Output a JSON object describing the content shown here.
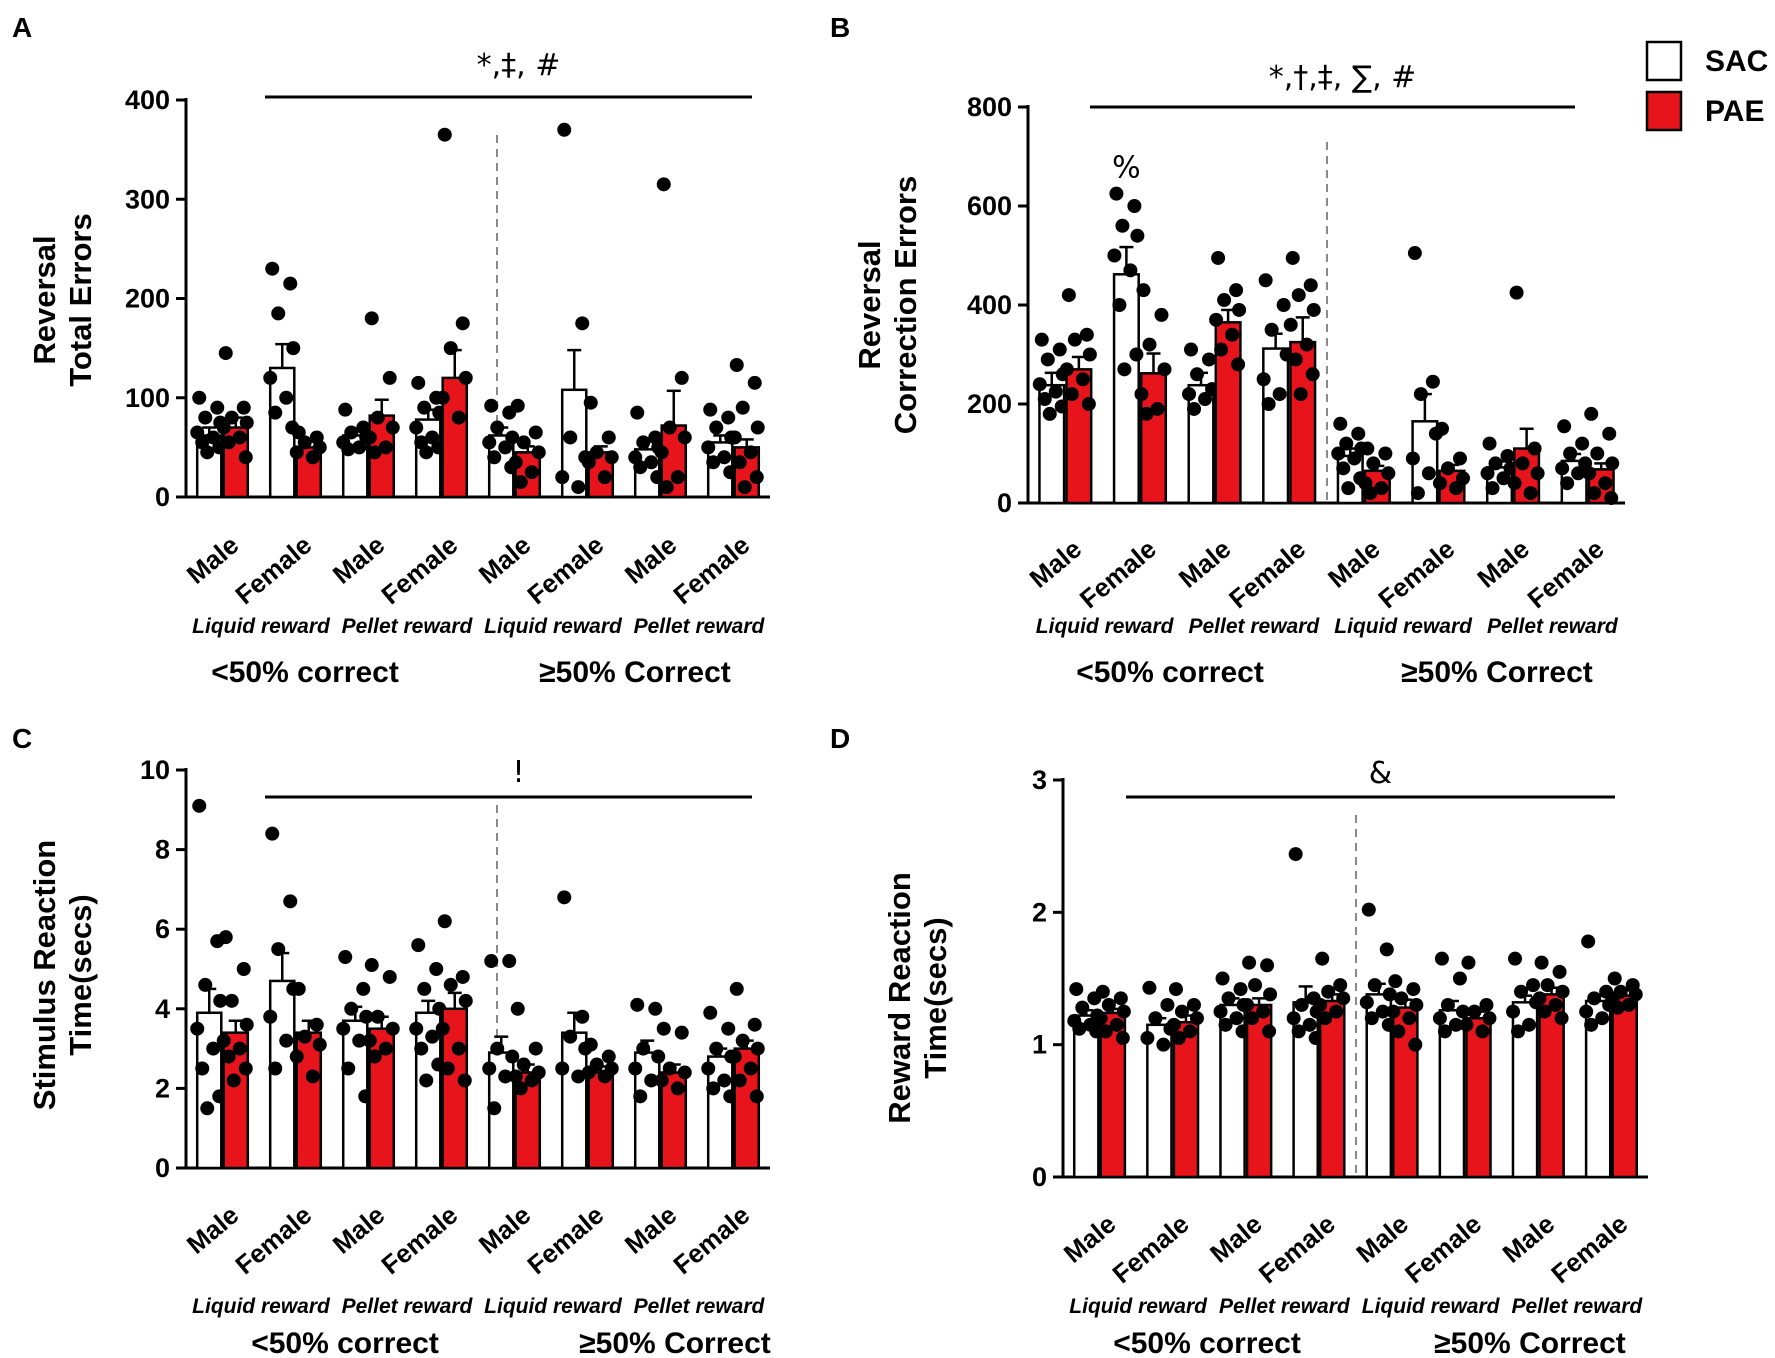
{
  "colors": {
    "sac": "#ffffff",
    "pae": "#e8141b",
    "dot": "#000000",
    "divider": "#8a8a8a"
  },
  "legend": [
    {
      "label": "SAC",
      "color": "#ffffff"
    },
    {
      "label": "PAE",
      "color": "#e8141b"
    }
  ],
  "chart_data": [
    {
      "panel": "A",
      "type": "bar",
      "ylabel_lines": [
        "Reversal",
        "Total Errors"
      ],
      "ylim": [
        0,
        400
      ],
      "yticks": [
        "0",
        "100",
        "200",
        "300",
        "400"
      ],
      "categories": [
        "Male",
        "Female",
        "Male",
        "Female",
        "Male",
        "Female",
        "Male",
        "Female"
      ],
      "reward_groups": [
        "Liquid reward",
        "Pellet reward",
        "Liquid reward",
        "Pellet reward"
      ],
      "thresholds": [
        "<50% correct",
        "≥50% Correct"
      ],
      "significance": "*,‡, #",
      "series": [
        {
          "name": "SAC",
          "values": [
            62,
            130,
            62,
            78,
            62,
            108,
            48,
            55
          ],
          "sem": [
            8,
            24,
            7,
            10,
            8,
            40,
            8,
            7
          ],
          "points": [
            [
              100,
              90,
              80,
              75,
              65,
              60,
              55,
              50,
              45
            ],
            [
              230,
              215,
              185,
              150,
              120,
              100,
              85,
              70
            ],
            [
              88,
              70,
              65,
              60,
              55,
              50,
              48
            ],
            [
              115,
              100,
              90,
              85,
              70,
              60,
              55,
              50,
              45
            ],
            [
              92,
              85,
              70,
              60,
              55,
              50,
              40,
              30
            ],
            [
              370,
              175,
              60,
              40,
              20,
              10
            ],
            [
              85,
              60,
              55,
              50,
              40,
              35,
              30,
              20
            ],
            [
              88,
              80,
              70,
              60,
              50,
              40,
              35,
              25
            ]
          ]
        },
        {
          "name": "PAE",
          "values": [
            70,
            50,
            82,
            120,
            45,
            45,
            72,
            50
          ],
          "sem": [
            10,
            6,
            16,
            28,
            6,
            6,
            35,
            8
          ],
          "points": [
            [
              145,
              90,
              80,
              75,
              70,
              60,
              55,
              40
            ],
            [
              65,
              60,
              55,
              50,
              45,
              40
            ],
            [
              180,
              120,
              80,
              70,
              60,
              50,
              45
            ],
            [
              365,
              175,
              150,
              120,
              100,
              80
            ],
            [
              92,
              65,
              55,
              45,
              35,
              25,
              15
            ],
            [
              95,
              60,
              45,
              40,
              35,
              20
            ],
            [
              315,
              120,
              70,
              60,
              45,
              20,
              10
            ],
            [
              133,
              115,
              90,
              70,
              60,
              45,
              35,
              20,
              10
            ]
          ]
        }
      ]
    },
    {
      "panel": "B",
      "type": "bar",
      "ylabel_lines": [
        "Reversal",
        "Correction Errors"
      ],
      "ylim": [
        0,
        800
      ],
      "yticks": [
        "0",
        "200",
        "400",
        "600",
        "800"
      ],
      "categories": [
        "Male",
        "Female",
        "Male",
        "Female",
        "Male",
        "Female",
        "Male",
        "Female"
      ],
      "reward_groups": [
        "Liquid reward",
        "Pellet reward",
        "Liquid reward",
        "Pellet reward"
      ],
      "thresholds": [
        "<50% correct",
        "≥50% Correct"
      ],
      "significance": "*,†,‡, ∑, #",
      "annotation": {
        "text": "%",
        "category_index": 1
      },
      "series": [
        {
          "name": "SAC",
          "values": [
            238,
            462,
            238,
            312,
            95,
            165,
            72,
            85
          ],
          "sem": [
            25,
            55,
            25,
            30,
            15,
            55,
            12,
            14
          ],
          "points": [
            [
              330,
              310,
              290,
              260,
              240,
              225,
              210,
              195,
              180
            ],
            [
              625,
              600,
              560,
              540,
              500,
              470,
              400,
              300,
              270
            ],
            [
              310,
              290,
              260,
              230,
              220,
              210,
              190
            ],
            [
              450,
              400,
              350,
              300,
              250,
              220,
              200
            ],
            [
              160,
              140,
              120,
              110,
              100,
              90,
              70,
              50,
              30
            ],
            [
              505,
              245,
              220,
              140,
              90,
              60,
              20
            ],
            [
              120,
              95,
              80,
              70,
              60,
              50,
              30
            ],
            [
              155,
              120,
              100,
              80,
              70,
              60,
              40
            ]
          ]
        },
        {
          "name": "PAE",
          "values": [
            270,
            262,
            365,
            325,
            65,
            65,
            110,
            68
          ],
          "sem": [
            25,
            40,
            25,
            50,
            10,
            12,
            40,
            12
          ],
          "points": [
            [
              420,
              340,
              330,
              300,
              270,
              250,
              220,
              200
            ],
            [
              430,
              380,
              320,
              270,
              220,
              190,
              180
            ],
            [
              495,
              430,
              410,
              390,
              370,
              340,
              310,
              280
            ],
            [
              495,
              440,
              420,
              390,
              360,
              320,
              290,
              260,
              220
            ],
            [
              110,
              100,
              80,
              60,
              40,
              30,
              20
            ],
            [
              150,
              90,
              70,
              50,
              40,
              30
            ],
            [
              425,
              110,
              80,
              60,
              40,
              20
            ],
            [
              180,
              140,
              100,
              80,
              60,
              40,
              20,
              10
            ]
          ]
        }
      ]
    },
    {
      "panel": "C",
      "type": "bar",
      "ylabel_lines": [
        "Stimulus Reaction",
        "Time(secs)"
      ],
      "ylim": [
        0,
        10
      ],
      "yticks": [
        "0",
        "2",
        "4",
        "6",
        "8",
        "10"
      ],
      "categories": [
        "Male",
        "Female",
        "Male",
        "Female",
        "Male",
        "Female",
        "Male",
        "Female"
      ],
      "reward_groups": [
        "Liquid reward",
        "Pellet reward",
        "Liquid reward",
        "Pellet reward"
      ],
      "thresholds": [
        "<50% correct",
        "≥50% Correct"
      ],
      "significance": "!",
      "series": [
        {
          "name": "SAC",
          "values": [
            3.9,
            4.7,
            3.7,
            3.9,
            2.9,
            3.4,
            2.9,
            2.8
          ],
          "sem": [
            0.6,
            0.7,
            0.35,
            0.3,
            0.4,
            0.5,
            0.3,
            0.2
          ],
          "points": [
            [
              9.1,
              5.7,
              4.6,
              4.2,
              3.5,
              3.0,
              2.5,
              1.8,
              1.5
            ],
            [
              8.4,
              6.7,
              5.5,
              4.5,
              3.8,
              3.2,
              2.5
            ],
            [
              5.3,
              4.5,
              4.0,
              3.8,
              3.5,
              3.2,
              2.5,
              1.8
            ],
            [
              5.6,
              5.0,
              4.5,
              4.0,
              3.5,
              3.3,
              3.0,
              2.6,
              2.2
            ],
            [
              5.2,
              5.2,
              3.0,
              2.8,
              2.5,
              2.3,
              1.5
            ],
            [
              6.8,
              3.8,
              3.3,
              3.0,
              2.5,
              2.3
            ],
            [
              4.1,
              4.0,
              3.0,
              2.8,
              2.5,
              2.2,
              1.8
            ],
            [
              3.9,
              3.5,
              3.0,
              2.8,
              2.5,
              2.2,
              2.0,
              1.8
            ]
          ]
        },
        {
          "name": "PAE",
          "values": [
            3.4,
            3.4,
            3.5,
            4.0,
            2.4,
            2.4,
            2.4,
            3.0
          ],
          "sem": [
            0.3,
            0.3,
            0.3,
            0.4,
            0.2,
            0.15,
            0.2,
            0.2
          ],
          "points": [
            [
              5.8,
              5.0,
              4.2,
              3.6,
              3.2,
              3.0,
              2.8,
              2.5,
              2.2
            ],
            [
              4.5,
              3.6,
              3.3,
              3.1,
              2.8,
              2.3
            ],
            [
              5.1,
              4.8,
              3.8,
              3.5,
              3.2,
              3.0,
              2.8
            ],
            [
              6.2,
              4.8,
              4.6,
              4.2,
              3.5,
              3.0,
              2.5,
              2.2
            ],
            [
              4.0,
              3.0,
              2.6,
              2.4,
              2.3,
              2.2,
              2.0
            ],
            [
              3.1,
              2.8,
              2.6,
              2.5,
              2.4,
              2.3
            ],
            [
              3.5,
              3.4,
              2.5,
              2.4,
              2.2,
              2.0
            ],
            [
              4.5,
              3.6,
              3.2,
              3.0,
              2.8,
              2.5,
              2.2,
              1.8
            ]
          ]
        }
      ]
    },
    {
      "panel": "D",
      "type": "bar",
      "ylabel_lines": [
        "Reward Reaction",
        "Time(secs)"
      ],
      "ylim": [
        0,
        3
      ],
      "yticks": [
        "0",
        "1",
        "2",
        "3"
      ],
      "categories": [
        "Male",
        "Female",
        "Male",
        "Female",
        "Male",
        "Female",
        "Male",
        "Female"
      ],
      "reward_groups": [
        "Liquid reward",
        "Pellet reward",
        "Liquid reward",
        "Pellet reward"
      ],
      "thresholds": [
        "<50% correct",
        "≥50% Correct"
      ],
      "significance": "&",
      "series": [
        {
          "name": "SAC",
          "values": [
            1.22,
            1.15,
            1.3,
            1.32,
            1.38,
            1.26,
            1.32,
            1.33
          ],
          "sem": [
            0.04,
            0.05,
            0.05,
            0.12,
            0.08,
            0.07,
            0.05,
            0.04
          ],
          "points": [
            [
              1.42,
              1.35,
              1.28,
              1.22,
              1.18,
              1.15,
              1.12,
              1.1
            ],
            [
              1.43,
              1.3,
              1.2,
              1.12,
              1.05,
              1.0
            ],
            [
              1.5,
              1.42,
              1.35,
              1.3,
              1.25,
              1.2,
              1.15,
              1.1
            ],
            [
              2.44,
              1.35,
              1.3,
              1.25,
              1.2,
              1.15,
              1.1,
              1.05
            ],
            [
              2.02,
              1.72,
              1.45,
              1.38,
              1.32,
              1.25,
              1.2,
              1.15
            ],
            [
              1.65,
              1.5,
              1.3,
              1.25,
              1.2,
              1.15,
              1.1
            ],
            [
              1.65,
              1.45,
              1.4,
              1.32,
              1.25,
              1.15,
              1.1
            ],
            [
              1.78,
              1.4,
              1.35,
              1.3,
              1.25,
              1.2,
              1.15
            ]
          ]
        },
        {
          "name": "PAE",
          "values": [
            1.24,
            1.17,
            1.3,
            1.33,
            1.28,
            1.2,
            1.38,
            1.37
          ],
          "sem": [
            0.03,
            0.05,
            0.05,
            0.05,
            0.06,
            0.05,
            0.05,
            0.04
          ],
          "points": [
            [
              1.4,
              1.35,
              1.3,
              1.25,
              1.2,
              1.15,
              1.1,
              1.05
            ],
            [
              1.42,
              1.3,
              1.25,
              1.2,
              1.15,
              1.1,
              1.05
            ],
            [
              1.62,
              1.6,
              1.45,
              1.38,
              1.3,
              1.25,
              1.2,
              1.1
            ],
            [
              1.65,
              1.45,
              1.4,
              1.35,
              1.3,
              1.25,
              1.2
            ],
            [
              1.48,
              1.42,
              1.35,
              1.3,
              1.25,
              1.2,
              1.1,
              1.0
            ],
            [
              1.62,
              1.3,
              1.25,
              1.2,
              1.15,
              1.1
            ],
            [
              1.62,
              1.55,
              1.45,
              1.4,
              1.35,
              1.3,
              1.25,
              1.2
            ],
            [
              1.5,
              1.45,
              1.4,
              1.38,
              1.35,
              1.3,
              1.28
            ]
          ]
        }
      ]
    }
  ]
}
